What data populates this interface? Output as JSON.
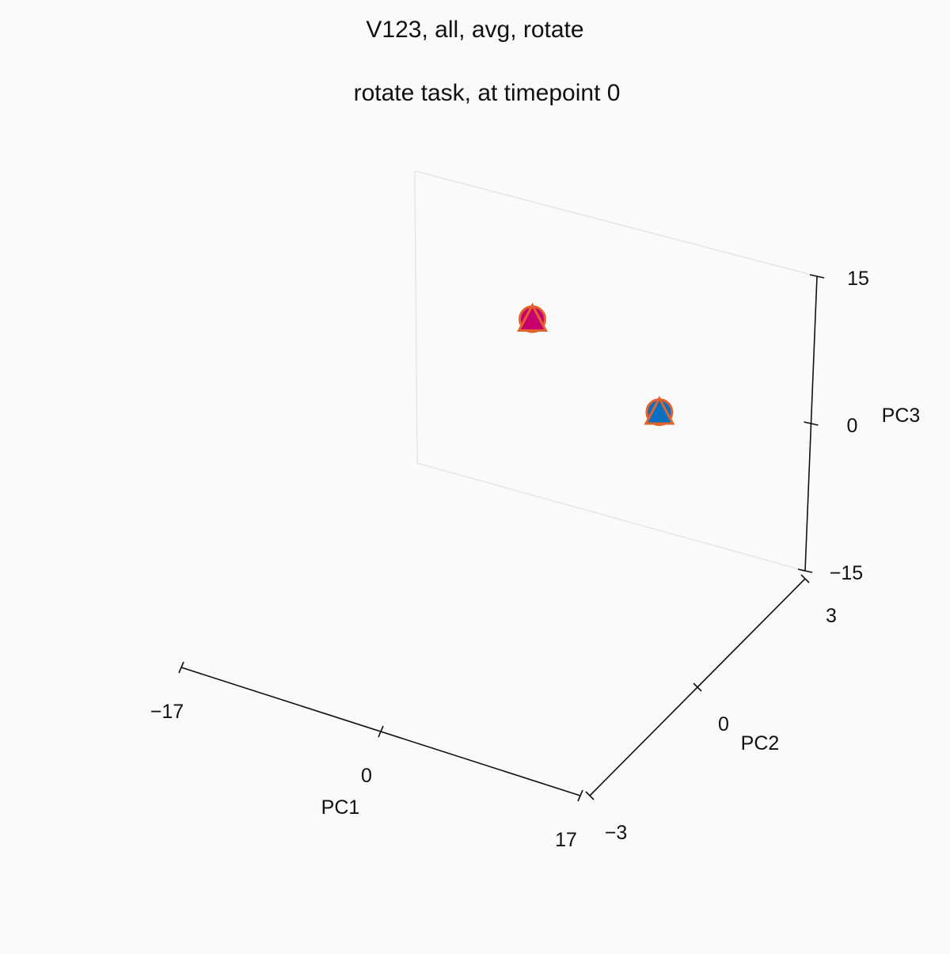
{
  "chart_data": {
    "type": "scatter",
    "projection": "3d",
    "title": "V123, all, avg, rotate",
    "subtitle": "rotate task, at timepoint 0",
    "axes": {
      "x": {
        "label": "PC1",
        "lim": [
          -17,
          17
        ],
        "ticks": [
          -17,
          0,
          17
        ],
        "tick_labels": [
          "−17",
          "0",
          "17"
        ]
      },
      "y": {
        "label": "PC2",
        "lim": [
          -3,
          3
        ],
        "ticks": [
          -3,
          0,
          3
        ],
        "tick_labels": [
          "−3",
          "0",
          "3"
        ]
      },
      "z": {
        "label": "PC3",
        "lim": [
          -15,
          15
        ],
        "ticks": [
          -15,
          0,
          15
        ],
        "tick_labels": [
          "−15",
          "0",
          "15"
        ]
      }
    },
    "grid": false,
    "series": [
      {
        "marker": "circle",
        "color": "#c7006d",
        "edge_color": "#e2622b",
        "points": [
          {
            "x": -7,
            "y": 3,
            "z": 3
          }
        ]
      },
      {
        "marker": "triangle",
        "color": "#c7006d",
        "edge_color": "#e2622b",
        "points": [
          {
            "x": -7,
            "y": 3,
            "z": 3
          }
        ]
      },
      {
        "marker": "circle",
        "color": "#0a6fc0",
        "edge_color": "#e2622b",
        "points": [
          {
            "x": 4,
            "y": 3,
            "z": -3
          }
        ]
      },
      {
        "marker": "triangle",
        "color": "#0a6fc0",
        "edge_color": "#e2622b",
        "points": [
          {
            "x": 4,
            "y": 3,
            "z": -3
          }
        ]
      }
    ]
  }
}
